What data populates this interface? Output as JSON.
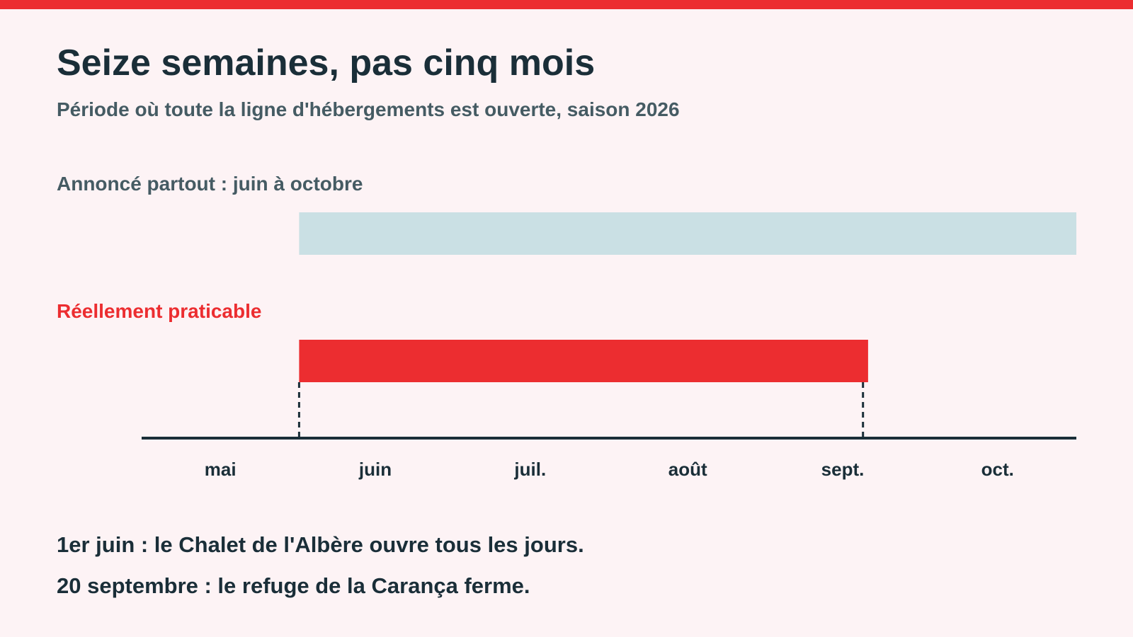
{
  "colors": {
    "accent": "#EC2D30",
    "announced_bar": "#CAE0E4",
    "text_dark": "#1A2E38",
    "text_muted": "#455B63",
    "background": "#FDF3F5"
  },
  "header": {
    "title": "Seize semaines, pas cinq mois",
    "subtitle": "Période où toute la ligne d'hébergements est ouverte, saison 2026"
  },
  "chart_data": {
    "type": "range-bar",
    "x_axis": {
      "type": "date",
      "range": [
        "2026-05-01",
        "2026-10-31"
      ],
      "tick_labels": [
        "mai",
        "juin",
        "juil.",
        "août",
        "sept.",
        "oct."
      ]
    },
    "series": [
      {
        "name": "Annoncé partout : juin à octobre",
        "start": "2026-06-01",
        "end": "2026-10-31",
        "color": "#CAE0E4"
      },
      {
        "name": "Réellement praticable",
        "start": "2026-06-01",
        "end": "2026-09-20",
        "color": "#EC2D30"
      }
    ],
    "reference_lines": [
      {
        "date": "2026-06-01",
        "style": "dashed"
      },
      {
        "date": "2026-09-20",
        "style": "dashed"
      }
    ]
  },
  "notes": [
    "1er juin : le Chalet de l'Albère ouvre tous les jours.",
    "20 septembre : le refuge de la Carança ferme."
  ]
}
